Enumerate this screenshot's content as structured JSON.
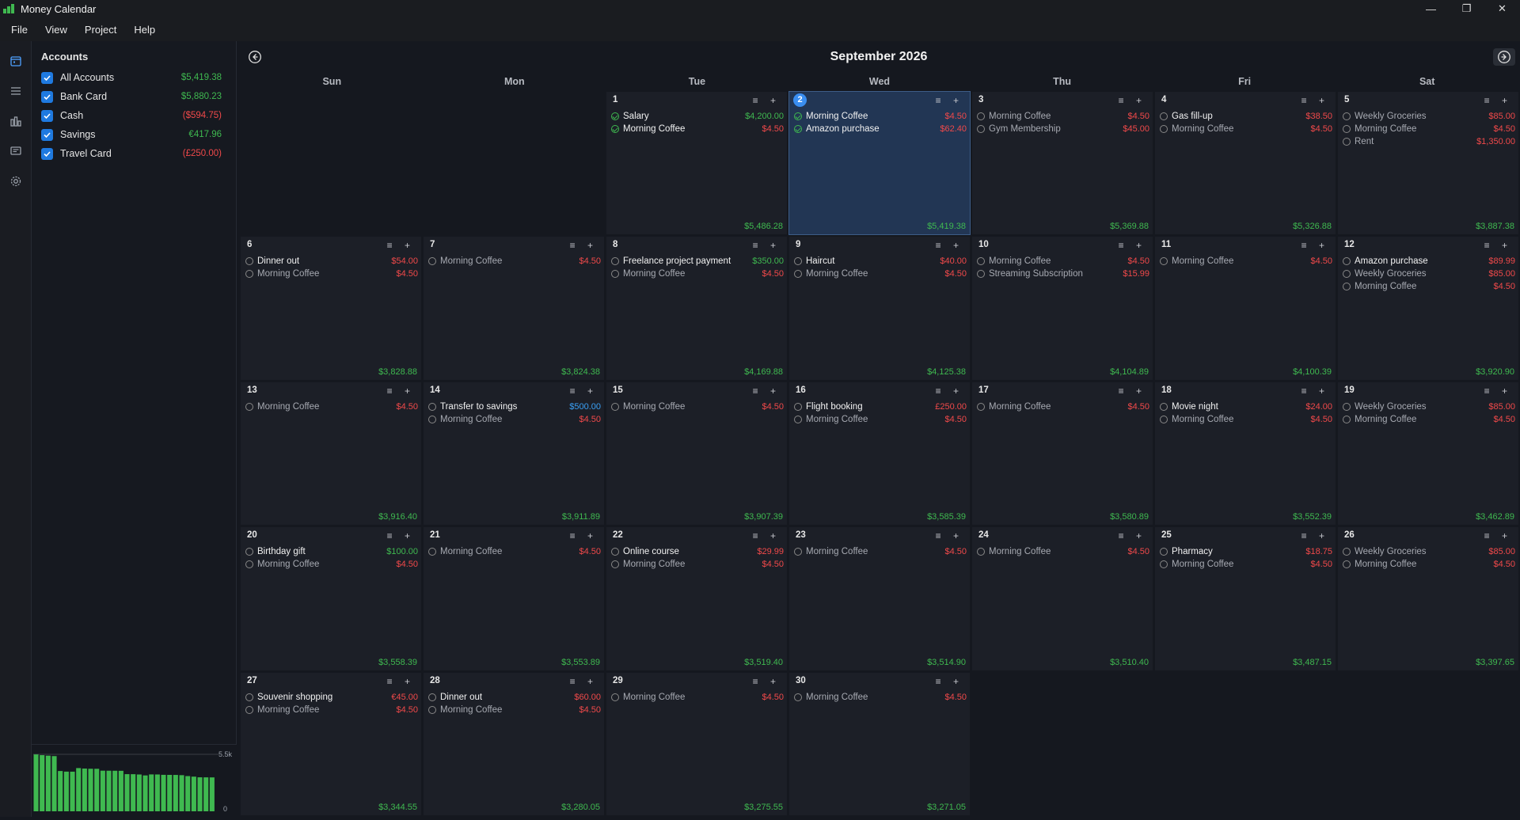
{
  "app": {
    "title": "Money Calendar"
  },
  "window_controls": {
    "minimize": "—",
    "restore": "❐",
    "close": "✕"
  },
  "menu": [
    "File",
    "View",
    "Project",
    "Help"
  ],
  "sidebar_icons": [
    "calendar-icon",
    "list-icon",
    "chart-icon",
    "messages-icon",
    "gear-icon"
  ],
  "accounts": {
    "title": "Accounts",
    "items": [
      {
        "name": "All Accounts",
        "balance": "$5,419.38",
        "color": "#3fb950"
      },
      {
        "name": "Bank Card",
        "balance": "$5,880.23",
        "color": "#3fb950"
      },
      {
        "name": "Cash",
        "balance": "($594.75)",
        "color": "#f0494a"
      },
      {
        "name": "Savings",
        "balance": "€417.96",
        "color": "#3fb950"
      },
      {
        "name": "Travel Card",
        "balance": "(£250.00)",
        "color": "#f0494a"
      }
    ]
  },
  "mini_chart": {
    "max_label": "5.5k",
    "min_label": "0",
    "max": 5500,
    "values": [
      5486.28,
      5419.38,
      5369.88,
      5326.88,
      3887.38,
      3828.88,
      3824.38,
      4169.88,
      4125.38,
      4104.89,
      4100.39,
      3920.9,
      3916.4,
      3911.89,
      3907.39,
      3585.39,
      3580.89,
      3552.39,
      3462.89,
      3558.39,
      3553.89,
      3519.4,
      3514.9,
      3510.4,
      3487.15,
      3397.65,
      3344.55,
      3280.05,
      3275.55,
      3271.05
    ]
  },
  "calendar": {
    "month_title": "September 2026",
    "weekdays": [
      "Sun",
      "Mon",
      "Tue",
      "Wed",
      "Thu",
      "Fri",
      "Sat"
    ],
    "start_offset": 2,
    "today": 2,
    "tools": "≡ +",
    "days": [
      {
        "d": "1",
        "total": "$5,486.28",
        "tx": [
          {
            "name": "Salary",
            "amount": "$4,200.00",
            "kind": "pos",
            "status": "done"
          },
          {
            "name": "Morning Coffee",
            "amount": "$4.50",
            "kind": "neg",
            "status": "done"
          }
        ]
      },
      {
        "d": "2",
        "total": "$5,419.38",
        "tx": [
          {
            "name": "Morning Coffee",
            "amount": "$4.50",
            "kind": "neg",
            "status": "done"
          },
          {
            "name": "Amazon purchase",
            "amount": "$62.40",
            "kind": "neg",
            "status": "done"
          }
        ]
      },
      {
        "d": "3",
        "total": "$5,369.88",
        "tx": [
          {
            "name": "Morning Coffee",
            "amount": "$4.50",
            "kind": "neg",
            "status": "pending"
          },
          {
            "name": "Gym Membership",
            "amount": "$45.00",
            "kind": "neg",
            "status": "pending"
          }
        ]
      },
      {
        "d": "4",
        "total": "$5,326.88",
        "tx": [
          {
            "name": "Gas fill-up",
            "amount": "$38.50",
            "kind": "neg",
            "status": "pending_bold"
          },
          {
            "name": "Morning Coffee",
            "amount": "$4.50",
            "kind": "neg",
            "status": "pending"
          }
        ]
      },
      {
        "d": "5",
        "total": "$3,887.38",
        "tx": [
          {
            "name": "Weekly Groceries",
            "amount": "$85.00",
            "kind": "neg",
            "status": "pending"
          },
          {
            "name": "Morning Coffee",
            "amount": "$4.50",
            "kind": "neg",
            "status": "pending"
          },
          {
            "name": "Rent",
            "amount": "$1,350.00",
            "kind": "neg",
            "status": "pending"
          }
        ]
      },
      {
        "d": "6",
        "total": "$3,828.88",
        "tx": [
          {
            "name": "Dinner out",
            "amount": "$54.00",
            "kind": "neg",
            "status": "pending_bold"
          },
          {
            "name": "Morning Coffee",
            "amount": "$4.50",
            "kind": "neg",
            "status": "pending"
          }
        ]
      },
      {
        "d": "7",
        "total": "$3,824.38",
        "tx": [
          {
            "name": "Morning Coffee",
            "amount": "$4.50",
            "kind": "neg",
            "status": "pending"
          }
        ]
      },
      {
        "d": "8",
        "total": "$4,169.88",
        "tx": [
          {
            "name": "Freelance project payment",
            "amount": "$350.00",
            "kind": "pos",
            "status": "pending_bold"
          },
          {
            "name": "Morning Coffee",
            "amount": "$4.50",
            "kind": "neg",
            "status": "pending"
          }
        ]
      },
      {
        "d": "9",
        "total": "$4,125.38",
        "tx": [
          {
            "name": "Haircut",
            "amount": "$40.00",
            "kind": "neg",
            "status": "pending_bold"
          },
          {
            "name": "Morning Coffee",
            "amount": "$4.50",
            "kind": "neg",
            "status": "pending"
          }
        ]
      },
      {
        "d": "10",
        "total": "$4,104.89",
        "tx": [
          {
            "name": "Morning Coffee",
            "amount": "$4.50",
            "kind": "neg",
            "status": "pending"
          },
          {
            "name": "Streaming Subscription",
            "amount": "$15.99",
            "kind": "neg",
            "status": "pending"
          }
        ]
      },
      {
        "d": "11",
        "total": "$4,100.39",
        "tx": [
          {
            "name": "Morning Coffee",
            "amount": "$4.50",
            "kind": "neg",
            "status": "pending"
          }
        ]
      },
      {
        "d": "12",
        "total": "$3,920.90",
        "tx": [
          {
            "name": "Amazon purchase",
            "amount": "$89.99",
            "kind": "neg",
            "status": "pending_bold"
          },
          {
            "name": "Weekly Groceries",
            "amount": "$85.00",
            "kind": "neg",
            "status": "pending"
          },
          {
            "name": "Morning Coffee",
            "amount": "$4.50",
            "kind": "neg",
            "status": "pending"
          }
        ]
      },
      {
        "d": "13",
        "total": "$3,916.40",
        "tx": [
          {
            "name": "Morning Coffee",
            "amount": "$4.50",
            "kind": "neg",
            "status": "pending"
          }
        ]
      },
      {
        "d": "14",
        "total": "$3,911.89",
        "tx": [
          {
            "name": "Transfer to savings",
            "amount": "$500.00",
            "kind": "xfer",
            "status": "pending_bold"
          },
          {
            "name": "Morning Coffee",
            "amount": "$4.50",
            "kind": "neg",
            "status": "pending"
          }
        ]
      },
      {
        "d": "15",
        "total": "$3,907.39",
        "tx": [
          {
            "name": "Morning Coffee",
            "amount": "$4.50",
            "kind": "neg",
            "status": "pending"
          }
        ]
      },
      {
        "d": "16",
        "total": "$3,585.39",
        "tx": [
          {
            "name": "Flight booking",
            "amount": "£250.00",
            "kind": "neg",
            "status": "pending_bold"
          },
          {
            "name": "Morning Coffee",
            "amount": "$4.50",
            "kind": "neg",
            "status": "pending"
          }
        ]
      },
      {
        "d": "17",
        "total": "$3,580.89",
        "tx": [
          {
            "name": "Morning Coffee",
            "amount": "$4.50",
            "kind": "neg",
            "status": "pending"
          }
        ]
      },
      {
        "d": "18",
        "total": "$3,552.39",
        "tx": [
          {
            "name": "Movie night",
            "amount": "$24.00",
            "kind": "neg",
            "status": "pending_bold"
          },
          {
            "name": "Morning Coffee",
            "amount": "$4.50",
            "kind": "neg",
            "status": "pending"
          }
        ]
      },
      {
        "d": "19",
        "total": "$3,462.89",
        "tx": [
          {
            "name": "Weekly Groceries",
            "amount": "$85.00",
            "kind": "neg",
            "status": "pending"
          },
          {
            "name": "Morning Coffee",
            "amount": "$4.50",
            "kind": "neg",
            "status": "pending"
          }
        ]
      },
      {
        "d": "20",
        "total": "$3,558.39",
        "tx": [
          {
            "name": "Birthday gift",
            "amount": "$100.00",
            "kind": "pos",
            "status": "pending_bold"
          },
          {
            "name": "Morning Coffee",
            "amount": "$4.50",
            "kind": "neg",
            "status": "pending"
          }
        ]
      },
      {
        "d": "21",
        "total": "$3,553.89",
        "tx": [
          {
            "name": "Morning Coffee",
            "amount": "$4.50",
            "kind": "neg",
            "status": "pending"
          }
        ]
      },
      {
        "d": "22",
        "total": "$3,519.40",
        "tx": [
          {
            "name": "Online course",
            "amount": "$29.99",
            "kind": "neg",
            "status": "pending_bold"
          },
          {
            "name": "Morning Coffee",
            "amount": "$4.50",
            "kind": "neg",
            "status": "pending"
          }
        ]
      },
      {
        "d": "23",
        "total": "$3,514.90",
        "tx": [
          {
            "name": "Morning Coffee",
            "amount": "$4.50",
            "kind": "neg",
            "status": "pending"
          }
        ]
      },
      {
        "d": "24",
        "total": "$3,510.40",
        "tx": [
          {
            "name": "Morning Coffee",
            "amount": "$4.50",
            "kind": "neg",
            "status": "pending"
          }
        ]
      },
      {
        "d": "25",
        "total": "$3,487.15",
        "tx": [
          {
            "name": "Pharmacy",
            "amount": "$18.75",
            "kind": "neg",
            "status": "pending_bold"
          },
          {
            "name": "Morning Coffee",
            "amount": "$4.50",
            "kind": "neg",
            "status": "pending"
          }
        ]
      },
      {
        "d": "26",
        "total": "$3,397.65",
        "tx": [
          {
            "name": "Weekly Groceries",
            "amount": "$85.00",
            "kind": "neg",
            "status": "pending"
          },
          {
            "name": "Morning Coffee",
            "amount": "$4.50",
            "kind": "neg",
            "status": "pending"
          }
        ]
      },
      {
        "d": "27",
        "total": "$3,344.55",
        "tx": [
          {
            "name": "Souvenir shopping",
            "amount": "€45.00",
            "kind": "neg",
            "status": "pending_bold"
          },
          {
            "name": "Morning Coffee",
            "amount": "$4.50",
            "kind": "neg",
            "status": "pending"
          }
        ]
      },
      {
        "d": "28",
        "total": "$3,280.05",
        "tx": [
          {
            "name": "Dinner out",
            "amount": "$60.00",
            "kind": "neg",
            "status": "pending_bold"
          },
          {
            "name": "Morning Coffee",
            "amount": "$4.50",
            "kind": "neg",
            "status": "pending"
          }
        ]
      },
      {
        "d": "29",
        "total": "$3,275.55",
        "tx": [
          {
            "name": "Morning Coffee",
            "amount": "$4.50",
            "kind": "neg",
            "status": "pending"
          }
        ]
      },
      {
        "d": "30",
        "total": "$3,271.05",
        "tx": [
          {
            "name": "Morning Coffee",
            "amount": "$4.50",
            "kind": "neg",
            "status": "pending"
          }
        ]
      }
    ]
  }
}
